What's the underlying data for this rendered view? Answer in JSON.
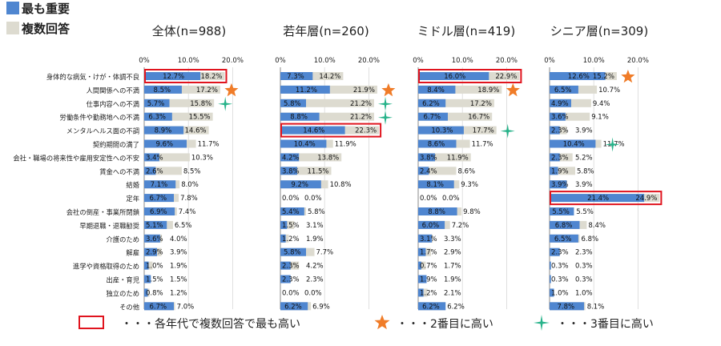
{
  "legend": {
    "primary": "最も重要",
    "multiple": "複数回答",
    "colors": {
      "primary": "#4f86d0",
      "multiple": "#dddbd0",
      "highlight": "#e0141e",
      "star": "#f07c28",
      "sparkle": "#27b38a"
    }
  },
  "axis": {
    "ticks": [
      "0%",
      "10.0%",
      "20.0%"
    ],
    "max": 25
  },
  "categories": [
    "身体的な病気・けが・体調不良",
    "人間関係への不満",
    "仕事内容への不満",
    "労働条件や勤務地への不満",
    "メンタルヘルス面の不調",
    "契約期間の満了",
    "会社・職場の将来性や雇用安定性への不安",
    "賃金への不満",
    "結婚",
    "定年",
    "会社の倒産・事業所閉鎖",
    "早期退職・退職勧奨",
    "介護のため",
    "解雇",
    "進学や資格取得のため",
    "出産・育児",
    "独立のため",
    "その他"
  ],
  "chart_data": [
    {
      "type": "bar",
      "title": "全体(n=988)",
      "series": [
        {
          "name": "最も重要",
          "values": [
            12.7,
            8.5,
            5.7,
            6.3,
            8.9,
            9.6,
            3.4,
            2.6,
            7.1,
            6.7,
            6.9,
            5.1,
            3.6,
            2.9,
            1.0,
            1.5,
            0.8,
            6.7
          ]
        },
        {
          "name": "複数回答",
          "values": [
            18.2,
            17.2,
            15.8,
            15.5,
            14.6,
            11.7,
            10.3,
            8.5,
            8.0,
            7.8,
            7.4,
            6.5,
            4.0,
            3.9,
            1.9,
            1.5,
            1.2,
            7.0
          ]
        }
      ],
      "labels_primary": [
        "12.7%",
        "8.5%",
        "5.7%",
        "6.3%",
        "8.9%",
        "9.6%",
        "3.4%",
        "2.6%",
        "7.1%",
        "6.7%",
        "6.9%",
        "5.1%",
        "3.6%",
        "2.9%",
        "1.0%",
        "1.5%",
        "0.8%",
        "6.7%"
      ],
      "labels_multiple": [
        "18.2%",
        "17.2%",
        "15.8%",
        "15.5%",
        "14.6%",
        "11.7%",
        "10.3%",
        "8.5%",
        "8.0%",
        "7.8%",
        "7.4%",
        "6.5%",
        "4.0%",
        "3.9%",
        "1.9%",
        "1.5%",
        "1.2%",
        "7.0%"
      ],
      "highlight": [
        0
      ],
      "star": [
        1
      ],
      "sparkle": [
        2
      ]
    },
    {
      "type": "bar",
      "title": "若年層(n=260)",
      "series": [
        {
          "name": "最も重要",
          "values": [
            7.3,
            11.2,
            5.8,
            8.8,
            14.6,
            10.4,
            4.2,
            3.8,
            9.2,
            0.0,
            5.4,
            1.5,
            1.2,
            5.8,
            2.3,
            2.3,
            0.0,
            6.2
          ]
        },
        {
          "name": "複数回答",
          "values": [
            14.2,
            21.9,
            21.2,
            21.2,
            22.3,
            11.9,
            13.8,
            11.5,
            10.8,
            0.0,
            5.8,
            3.1,
            1.9,
            7.7,
            4.2,
            2.3,
            0.0,
            6.9
          ]
        }
      ],
      "labels_primary": [
        "7.3%",
        "11.2%",
        "5.8%",
        "8.8%",
        "14.6%",
        "10.4%",
        "4.2%",
        "3.8%",
        "9.2%",
        "0.0%",
        "5.4%",
        "1.5%",
        "1.2%",
        "5.8%",
        "2.3%",
        "2.3%",
        "0.0%",
        "6.2%"
      ],
      "labels_multiple": [
        "14.2%",
        "21.9%",
        "21.2%",
        "21.2%",
        "22.3%",
        "11.9%",
        "13.8%",
        "11.5%",
        "10.8%",
        "0.0%",
        "5.8%",
        "3.1%",
        "1.9%",
        "7.7%",
        "4.2%",
        "2.3%",
        "0.0%",
        "6.9%"
      ],
      "highlight": [
        4
      ],
      "star": [
        1
      ],
      "sparkle": [
        2,
        3
      ]
    },
    {
      "type": "bar",
      "title": "ミドル層(n=419)",
      "series": [
        {
          "name": "最も重要",
          "values": [
            16.0,
            8.4,
            6.2,
            6.7,
            10.3,
            8.6,
            3.8,
            2.4,
            8.1,
            0.0,
            8.8,
            6.0,
            3.1,
            1.7,
            0.7,
            1.9,
            1.2,
            6.2
          ]
        },
        {
          "name": "複数回答",
          "values": [
            22.9,
            18.9,
            17.2,
            16.7,
            17.7,
            11.7,
            11.9,
            8.6,
            9.3,
            0.0,
            9.8,
            7.2,
            3.3,
            2.9,
            1.7,
            1.9,
            2.1,
            6.2
          ]
        }
      ],
      "labels_primary": [
        "16.0%",
        "8.4%",
        "6.2%",
        "6.7%",
        "10.3%",
        "8.6%",
        "3.8%",
        "2.4%",
        "8.1%",
        "0.0%",
        "8.8%",
        "6.0%",
        "3.1%",
        "1.7%",
        "0.7%",
        "1.9%",
        "1.2%",
        "6.2%"
      ],
      "labels_multiple": [
        "22.9%",
        "18.9%",
        "17.2%",
        "16.7%",
        "17.7%",
        "11.7%",
        "11.9%",
        "8.6%",
        "9.3%",
        "0.0%",
        "9.8%",
        "7.2%",
        "3.3%",
        "2.9%",
        "1.7%",
        "1.9%",
        "2.1%",
        "6.2%"
      ],
      "highlight": [
        0
      ],
      "star": [
        1
      ],
      "sparkle": [
        4
      ]
    },
    {
      "type": "bar",
      "title": "シニア層(n=309)",
      "series": [
        {
          "name": "最も重要",
          "values": [
            12.6,
            6.5,
            4.9,
            3.6,
            2.3,
            10.4,
            2.3,
            1.9,
            3.9,
            21.4,
            5.5,
            6.8,
            6.5,
            2.3,
            0.3,
            0.3,
            1.0,
            7.8
          ]
        },
        {
          "name": "複数回答",
          "values": [
            15.2,
            10.7,
            9.4,
            9.1,
            3.9,
            11.7,
            5.2,
            5.8,
            3.9,
            24.9,
            5.5,
            8.4,
            6.8,
            2.3,
            0.3,
            0.3,
            1.0,
            8.1
          ]
        }
      ],
      "labels_primary": [
        "12.6%",
        "6.5%",
        "4.9%",
        "3.6%",
        "2.3%",
        "10.4%",
        "2.3%",
        "1.9%",
        "3.9%",
        "21.4%",
        "5.5%",
        "6.8%",
        "6.5%",
        "2.3%",
        "0.3%",
        "0.3%",
        "1.0%",
        "7.8%"
      ],
      "labels_multiple": [
        "15.2%",
        "10.7%",
        "9.4%",
        "9.1%",
        "3.9%",
        "11.7%",
        "5.2%",
        "5.8%",
        "3.9%",
        "24.9%",
        "5.5%",
        "8.4%",
        "6.8%",
        "2.3%",
        "0.3%",
        "0.3%",
        "1.0%",
        "8.1%"
      ],
      "highlight": [
        9
      ],
      "star": [
        0
      ],
      "sparkle": [
        5
      ]
    }
  ],
  "footer": {
    "highlight_note": "・・・各年代で複数回答で最も高い",
    "star_note": "・・・2番目に高い",
    "sparkle_note": "・・・3番目に高い"
  }
}
